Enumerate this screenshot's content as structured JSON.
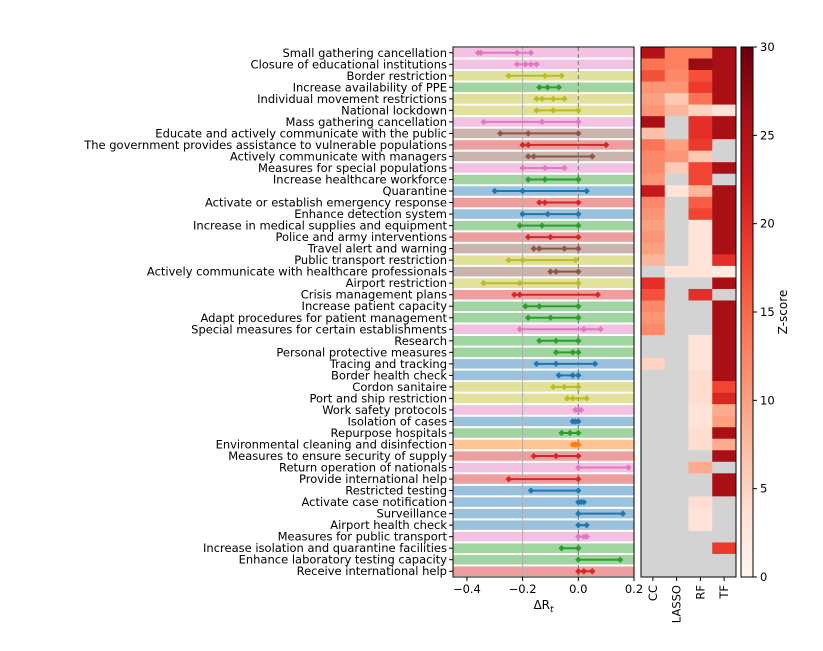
{
  "chart_data": [
    {
      "type": "interval",
      "xlabel": "ΔR_t",
      "xlim": [
        -0.45,
        0.2
      ],
      "xticks": [
        "−0.4",
        "−0.2",
        "0.0",
        "0.2"
      ],
      "xtick_values": [
        -0.4,
        -0.2,
        0.0,
        0.2
      ],
      "categories": [
        {
          "label": "Small gathering cancellation",
          "color": "#e377c2",
          "low": -0.36,
          "mid": -0.22,
          "high": -0.17,
          "points": [
            -0.36,
            -0.35,
            -0.22,
            -0.17
          ]
        },
        {
          "label": "Closure of educational institutions",
          "color": "#e377c2",
          "low": -0.22,
          "mid": -0.19,
          "high": -0.15,
          "points": [
            -0.22,
            -0.19,
            -0.17,
            -0.15
          ]
        },
        {
          "label": "Border restriction",
          "color": "#bcbd22",
          "low": -0.25,
          "mid": -0.12,
          "high": -0.06,
          "points": [
            -0.25,
            -0.12,
            -0.06
          ]
        },
        {
          "label": "Increase availability of PPE",
          "color": "#2ca02c",
          "low": -0.14,
          "mid": -0.11,
          "high": -0.07,
          "points": [
            -0.14,
            -0.11,
            -0.07
          ]
        },
        {
          "label": "Individual movement restrictions",
          "color": "#bcbd22",
          "low": -0.15,
          "mid": -0.09,
          "high": -0.05,
          "points": [
            -0.15,
            -0.13,
            -0.09,
            -0.05
          ]
        },
        {
          "label": "National lockdown",
          "color": "#bcbd22",
          "low": -0.15,
          "mid": -0.09,
          "high": 0.0,
          "points": [
            -0.15,
            -0.09,
            0.0
          ]
        },
        {
          "label": "Mass gathering cancellation",
          "color": "#e377c2",
          "low": -0.34,
          "mid": -0.13,
          "high": 0.0,
          "points": [
            -0.34,
            -0.13,
            0.0
          ]
        },
        {
          "label": "Educate and actively communicate with the public",
          "color": "#8c564b",
          "low": -0.28,
          "mid": -0.18,
          "high": 0.0,
          "points": [
            -0.28,
            -0.18,
            0.0
          ]
        },
        {
          "label": "The government provides assistance to vulnerable populations",
          "color": "#d62728",
          "low": -0.2,
          "mid": -0.18,
          "high": 0.1,
          "points": [
            -0.2,
            -0.18,
            0.1
          ]
        },
        {
          "label": "Actively communicate with managers",
          "color": "#8c564b",
          "low": -0.18,
          "mid": -0.16,
          "high": 0.05,
          "points": [
            -0.18,
            -0.16,
            0.05
          ]
        },
        {
          "label": "Measures for special populations",
          "color": "#e377c2",
          "low": -0.2,
          "mid": -0.12,
          "high": -0.05,
          "points": [
            -0.2,
            -0.12,
            -0.05
          ]
        },
        {
          "label": "Increase healthcare workforce",
          "color": "#2ca02c",
          "low": -0.18,
          "mid": -0.12,
          "high": 0.0,
          "points": [
            -0.18,
            -0.12,
            0.0
          ]
        },
        {
          "label": "Quarantine",
          "color": "#1f77b4",
          "low": -0.3,
          "mid": -0.2,
          "high": 0.03,
          "points": [
            -0.3,
            -0.2,
            0.03
          ]
        },
        {
          "label": "Activate or establish emergency response",
          "color": "#d62728",
          "low": -0.14,
          "mid": -0.12,
          "high": 0.0,
          "points": [
            -0.14,
            -0.12,
            0.0
          ]
        },
        {
          "label": "Enhance detection system",
          "color": "#1f77b4",
          "low": -0.2,
          "mid": -0.11,
          "high": 0.0,
          "points": [
            -0.2,
            -0.11,
            0.0
          ]
        },
        {
          "label": "Increase in medical supplies and equipment",
          "color": "#2ca02c",
          "low": -0.21,
          "mid": -0.13,
          "high": 0.0,
          "points": [
            -0.21,
            -0.13,
            0.0
          ]
        },
        {
          "label": "Police and army interventions",
          "color": "#d62728",
          "low": -0.18,
          "mid": -0.1,
          "high": 0.0,
          "points": [
            -0.18,
            -0.1,
            0.0
          ]
        },
        {
          "label": "Travel alert and warning",
          "color": "#8c564b",
          "low": -0.16,
          "mid": -0.14,
          "high": 0.0,
          "points": [
            -0.16,
            -0.14,
            -0.05,
            0.0
          ]
        },
        {
          "label": "Public transport restriction",
          "color": "#bcbd22",
          "low": -0.25,
          "mid": -0.2,
          "high": -0.01,
          "points": [
            -0.25,
            -0.2,
            -0.01
          ]
        },
        {
          "label": "Actively communicate with healthcare professionals",
          "color": "#8c564b",
          "low": -0.1,
          "mid": -0.08,
          "high": 0.0,
          "points": [
            -0.1,
            -0.08,
            0.0
          ]
        },
        {
          "label": "Airport restriction",
          "color": "#bcbd22",
          "low": -0.34,
          "mid": -0.21,
          "high": 0.0,
          "points": [
            -0.34,
            -0.21,
            0.0
          ]
        },
        {
          "label": "Crisis management plans",
          "color": "#d62728",
          "low": -0.23,
          "mid": -0.21,
          "high": 0.07,
          "points": [
            -0.23,
            -0.21,
            0.07
          ]
        },
        {
          "label": "Increase patient capacity",
          "color": "#2ca02c",
          "low": -0.19,
          "mid": -0.14,
          "high": 0.0,
          "points": [
            -0.19,
            -0.14,
            0.0
          ]
        },
        {
          "label": "Adapt procedures for patient management",
          "color": "#2ca02c",
          "low": -0.18,
          "mid": -0.1,
          "high": 0.0,
          "points": [
            -0.18,
            -0.1,
            0.0
          ]
        },
        {
          "label": "Special measures for certain establishments",
          "color": "#e377c2",
          "low": -0.21,
          "mid": 0.02,
          "high": 0.08,
          "points": [
            -0.21,
            0.02,
            0.08
          ]
        },
        {
          "label": "Research",
          "color": "#2ca02c",
          "low": -0.14,
          "mid": -0.08,
          "high": 0.0,
          "points": [
            -0.14,
            -0.08,
            0.0
          ]
        },
        {
          "label": "Personal protective measures",
          "color": "#2ca02c",
          "low": -0.08,
          "mid": -0.02,
          "high": 0.0,
          "points": [
            -0.08,
            -0.02,
            0.0
          ]
        },
        {
          "label": "Tracing and tracking",
          "color": "#1f77b4",
          "low": -0.15,
          "mid": -0.08,
          "high": 0.06,
          "points": [
            -0.15,
            -0.08,
            0.06
          ]
        },
        {
          "label": "Border health check",
          "color": "#1f77b4",
          "low": -0.07,
          "mid": -0.02,
          "high": 0.0,
          "points": [
            -0.07,
            -0.02,
            0.0
          ]
        },
        {
          "label": "Cordon sanitaire",
          "color": "#bcbd22",
          "low": -0.09,
          "mid": -0.05,
          "high": 0.0,
          "points": [
            -0.09,
            -0.05,
            0.0
          ]
        },
        {
          "label": "Port and ship restriction",
          "color": "#bcbd22",
          "low": -0.04,
          "mid": -0.02,
          "high": 0.03,
          "points": [
            -0.04,
            -0.02,
            0.03
          ]
        },
        {
          "label": "Work safety protocols",
          "color": "#e377c2",
          "low": -0.01,
          "mid": 0.0,
          "high": 0.01,
          "points": [
            -0.01,
            0.0,
            0.01
          ]
        },
        {
          "label": "Isolation of cases",
          "color": "#1f77b4",
          "low": -0.02,
          "mid": -0.01,
          "high": 0.0,
          "points": [
            -0.02,
            -0.01,
            0.0
          ]
        },
        {
          "label": "Repurpose hospitals",
          "color": "#2ca02c",
          "low": -0.06,
          "mid": -0.03,
          "high": 0.0,
          "points": [
            -0.06,
            -0.03,
            0.0
          ]
        },
        {
          "label": "Environmental cleaning and disinfection",
          "color": "#ff7f0e",
          "low": -0.02,
          "mid": -0.01,
          "high": 0.0,
          "points": [
            -0.02,
            -0.01,
            0.0
          ]
        },
        {
          "label": "Measures to ensure security of supply",
          "color": "#d62728",
          "low": -0.16,
          "mid": -0.08,
          "high": 0.0,
          "points": [
            -0.16,
            -0.08,
            0.0
          ]
        },
        {
          "label": "Return operation of nationals",
          "color": "#e377c2",
          "low": 0.0,
          "mid": 0.1,
          "high": 0.18,
          "points": [
            0.0,
            0.18
          ]
        },
        {
          "label": "Provide international help",
          "color": "#d62728",
          "low": -0.25,
          "mid": -0.1,
          "high": 0.0,
          "points": [
            -0.25,
            0.0
          ]
        },
        {
          "label": "Restricted testing",
          "color": "#1f77b4",
          "low": -0.17,
          "mid": -0.08,
          "high": 0.0,
          "points": [
            -0.17,
            0.0
          ]
        },
        {
          "label": "Activate case notification",
          "color": "#1f77b4",
          "low": 0.0,
          "mid": 0.01,
          "high": 0.02,
          "points": [
            0.0,
            0.01,
            0.02
          ]
        },
        {
          "label": "Surveillance",
          "color": "#1f77b4",
          "low": 0.0,
          "mid": 0.08,
          "high": 0.16,
          "points": [
            0.0,
            0.16
          ]
        },
        {
          "label": "Airport health check",
          "color": "#1f77b4",
          "low": 0.0,
          "mid": 0.01,
          "high": 0.03,
          "points": [
            0.0,
            0.03
          ]
        },
        {
          "label": "Measures for public transport",
          "color": "#e377c2",
          "low": 0.0,
          "mid": 0.02,
          "high": 0.03,
          "points": [
            0.0,
            0.02,
            0.03
          ]
        },
        {
          "label": "Increase isolation and quarantine facilities",
          "color": "#2ca02c",
          "low": -0.06,
          "mid": -0.03,
          "high": 0.0,
          "points": [
            -0.06,
            0.0
          ]
        },
        {
          "label": "Enhance laboratory testing capacity",
          "color": "#2ca02c",
          "low": 0.0,
          "mid": 0.08,
          "high": 0.15,
          "points": [
            0.0,
            0.15
          ]
        },
        {
          "label": "Receive international help",
          "color": "#d62728",
          "low": 0.0,
          "mid": 0.02,
          "high": 0.05,
          "points": [
            0.0,
            0.02,
            0.05
          ]
        }
      ]
    },
    {
      "type": "heatmap",
      "columns": [
        "CC",
        "LASSO",
        "RF",
        "TF"
      ],
      "colorbar_label": "Z-score",
      "colorbar_ticks": [
        0,
        5,
        10,
        15,
        20,
        25,
        30
      ],
      "zlim": [
        0,
        30
      ],
      "missing_color": "#d3d3d3",
      "rows": [
        [
          25,
          13,
          13,
          26
        ],
        [
          14,
          13,
          27,
          26
        ],
        [
          17,
          12,
          17,
          26
        ],
        [
          11,
          11,
          19,
          26
        ],
        [
          10,
          6,
          14,
          26
        ],
        [
          11,
          8,
          5,
          3
        ],
        [
          26,
          null,
          20,
          26
        ],
        [
          7,
          null,
          20,
          26
        ],
        [
          14,
          10,
          19,
          null
        ],
        [
          12,
          11,
          6,
          null
        ],
        [
          12,
          6,
          18,
          26
        ],
        [
          11,
          null,
          18,
          null
        ],
        [
          23,
          3,
          8,
          26
        ],
        [
          12,
          null,
          16,
          26
        ],
        [
          11,
          null,
          18,
          26
        ],
        [
          10,
          null,
          3,
          26
        ],
        [
          11,
          null,
          3,
          26
        ],
        [
          10,
          null,
          3,
          26
        ],
        [
          8,
          null,
          3,
          20
        ],
        [
          null,
          3,
          3,
          2
        ],
        [
          20,
          null,
          null,
          26
        ],
        [
          17,
          null,
          20,
          null
        ],
        [
          12,
          null,
          null,
          26
        ],
        [
          11,
          null,
          null,
          26
        ],
        [
          12,
          null,
          null,
          26
        ],
        [
          null,
          null,
          3,
          26
        ],
        [
          null,
          null,
          3,
          26
        ],
        [
          5,
          null,
          3,
          26
        ],
        [
          null,
          null,
          4,
          26
        ],
        [
          null,
          null,
          4,
          18
        ],
        [
          null,
          null,
          4,
          21
        ],
        [
          null,
          null,
          3,
          9
        ],
        [
          null,
          null,
          3,
          10
        ],
        [
          null,
          null,
          4,
          26
        ],
        [
          null,
          null,
          4,
          9
        ],
        [
          null,
          null,
          null,
          26
        ],
        [
          null,
          null,
          9,
          null
        ],
        [
          null,
          null,
          null,
          26
        ],
        [
          null,
          null,
          null,
          26
        ],
        [
          null,
          null,
          4,
          null
        ],
        [
          null,
          null,
          3,
          null
        ],
        [
          null,
          null,
          3,
          null
        ],
        [
          null,
          null,
          null,
          null
        ],
        [
          null,
          null,
          null,
          19
        ],
        [
          null,
          null,
          null,
          null
        ],
        [
          null,
          null,
          null,
          null
        ]
      ]
    }
  ]
}
